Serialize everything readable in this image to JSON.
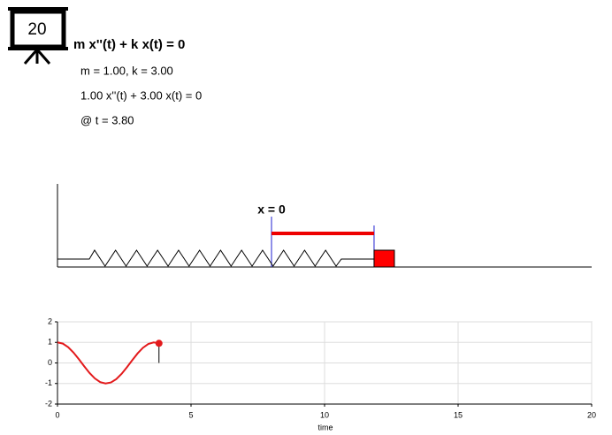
{
  "header": {
    "icon_label": "20",
    "equation": "m x''(t) + k x(t) = 0",
    "params": "m = 1.00, k = 3.00",
    "instance": "1.00 x''(t) + 3.00 x(t) = 0",
    "time": "@ t = 3.80"
  },
  "diagram": {
    "equilibrium_label": "x = 0"
  },
  "chart_data": {
    "type": "line",
    "xlabel": "time",
    "x": [
      0,
      0.2,
      0.4,
      0.6,
      0.8,
      1.0,
      1.2,
      1.4,
      1.6,
      1.8,
      2.0,
      2.2,
      2.4,
      2.6,
      2.8,
      3.0,
      3.2,
      3.4,
      3.6,
      3.8
    ],
    "values": [
      1,
      0.941,
      0.769,
      0.506,
      0.184,
      -0.16,
      -0.487,
      -0.754,
      -0.932,
      -1.0,
      -0.95,
      -0.791,
      -0.53,
      -0.209,
      0.136,
      0.464,
      0.738,
      0.924,
      0.999,
      0.956
    ],
    "color": "#e31a1c",
    "xlim": [
      0,
      20
    ],
    "ylim": [
      -2,
      2
    ],
    "xticks": [
      0,
      5,
      10,
      15,
      20
    ],
    "yticks": [
      -2,
      -1,
      0,
      1,
      2
    ],
    "grid": true
  }
}
